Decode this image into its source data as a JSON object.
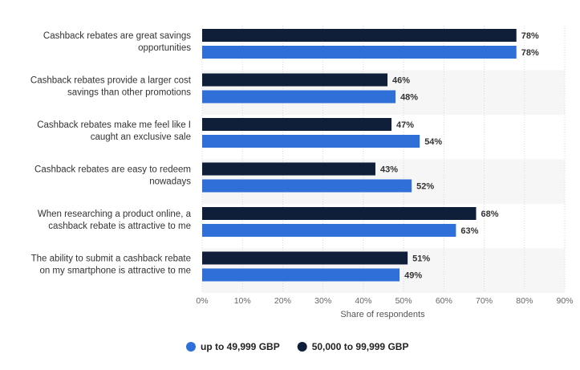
{
  "chart_data": {
    "type": "bar",
    "orientation": "horizontal",
    "categories": [
      [
        "Cashback rebates are great savings",
        "opportunities"
      ],
      [
        "Cashback rebates provide a larger cost",
        "savings than other promotions"
      ],
      [
        "Cashback rebates make me feel like I",
        "caught an exclusive sale"
      ],
      [
        "Cashback rebates are easy to redeem",
        "nowadays"
      ],
      [
        "When researching a product online, a",
        "cashback rebate is attractive to me"
      ],
      [
        "The ability to submit a cashback rebate",
        "on my smartphone is attractive to me"
      ]
    ],
    "series": [
      {
        "name": "50,000 to 99,999 GBP",
        "color": "#0f1f3a",
        "values": [
          78,
          46,
          47,
          43,
          68,
          51
        ]
      },
      {
        "name": "up to 49,999 GBP",
        "color": "#2f6fd8",
        "values": [
          78,
          48,
          54,
          52,
          63,
          49
        ]
      }
    ],
    "legend_order": [
      "up to 49,999 GBP",
      "50,000 to 99,999 GBP"
    ],
    "xlabel": "Share of respondents",
    "xlim": [
      0,
      90
    ],
    "xticks": [
      0,
      10,
      20,
      30,
      40,
      50,
      60,
      70,
      80,
      90
    ],
    "tick_suffix": "%",
    "value_suffix": "%",
    "grid": true,
    "legend_position": "bottom"
  }
}
